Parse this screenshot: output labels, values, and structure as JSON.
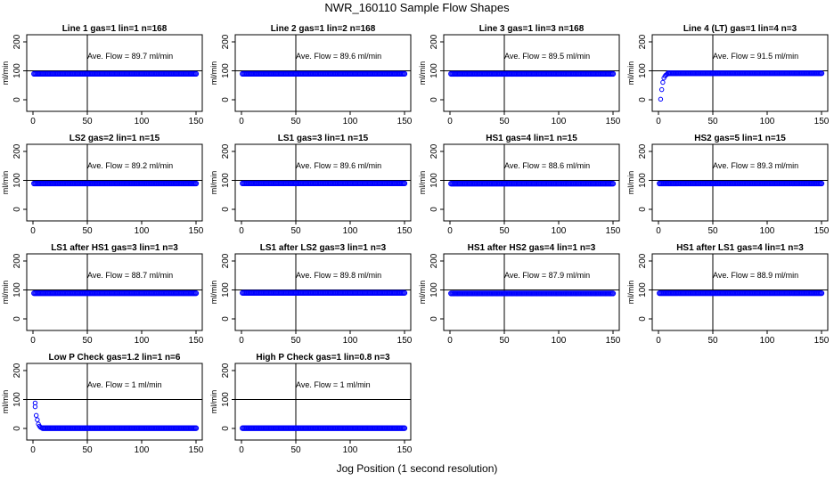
{
  "title": "NWR_160110  Sample Flow Shapes",
  "x_axis_label": "Jog Position (1 second resolution)",
  "colors": {
    "points": "#0000ff",
    "axes": "#000000"
  },
  "chart_data": [
    {
      "type": "scatter",
      "title": "Line 1 gas=1 lin=1 n=168",
      "ylabel": "ml/min",
      "annotation": "Ave. Flow =  89.7  ml/min",
      "xlim": [
        0,
        150
      ],
      "ylim": [
        0,
        200
      ],
      "x_ticks": [
        0,
        50,
        100,
        150
      ],
      "y_ticks": [
        0,
        100,
        200
      ],
      "hlines": [
        100
      ],
      "vlines": [
        50
      ],
      "series": [
        {
          "x_range": [
            1,
            150
          ],
          "y": 89.7
        }
      ]
    },
    {
      "type": "scatter",
      "title": "Line 2 gas=1 lin=2 n=168",
      "ylabel": "ml/min",
      "annotation": "Ave. Flow =  89.6  ml/min",
      "xlim": [
        0,
        150
      ],
      "ylim": [
        0,
        200
      ],
      "x_ticks": [
        0,
        50,
        100,
        150
      ],
      "y_ticks": [
        0,
        100,
        200
      ],
      "hlines": [
        100
      ],
      "vlines": [
        50
      ],
      "series": [
        {
          "x_range": [
            1,
            150
          ],
          "y": 89.6
        }
      ]
    },
    {
      "type": "scatter",
      "title": "Line 3 gas=1 lin=3 n=168",
      "ylabel": "ml/min",
      "annotation": "Ave. Flow =  89.5  ml/min",
      "xlim": [
        0,
        150
      ],
      "ylim": [
        0,
        200
      ],
      "x_ticks": [
        0,
        50,
        100,
        150
      ],
      "y_ticks": [
        0,
        100,
        200
      ],
      "hlines": [
        100
      ],
      "vlines": [
        50
      ],
      "series": [
        {
          "x_range": [
            1,
            150
          ],
          "y": 89.5
        }
      ]
    },
    {
      "type": "scatter",
      "title": "Line 4 (LT) gas=1 lin=4 n=3",
      "ylabel": "ml/min",
      "annotation": "Ave. Flow =  91.5  ml/min",
      "xlim": [
        0,
        150
      ],
      "ylim": [
        0,
        200
      ],
      "x_ticks": [
        0,
        50,
        100,
        150
      ],
      "y_ticks": [
        0,
        100,
        200
      ],
      "hlines": [
        100
      ],
      "vlines": [
        50
      ],
      "series": [
        {
          "points": [
            [
              2,
              2
            ],
            [
              3,
              35
            ],
            [
              4,
              60
            ],
            [
              5,
              75
            ],
            [
              6,
              82
            ],
            [
              7,
              86
            ],
            [
              8,
              88
            ]
          ],
          "x_range": [
            9,
            150
          ],
          "y": 91.5
        }
      ]
    },
    {
      "type": "scatter",
      "title": "LS2 gas=2 lin=1 n=15",
      "ylabel": "ml/min",
      "annotation": "Ave. Flow =  89.2  ml/min",
      "xlim": [
        0,
        150
      ],
      "ylim": [
        0,
        200
      ],
      "x_ticks": [
        0,
        50,
        100,
        150
      ],
      "y_ticks": [
        0,
        100,
        200
      ],
      "hlines": [
        100
      ],
      "vlines": [
        50
      ],
      "series": [
        {
          "x_range": [
            1,
            150
          ],
          "y": 89.2
        }
      ]
    },
    {
      "type": "scatter",
      "title": "LS1 gas=3 lin=1 n=15",
      "ylabel": "ml/min",
      "annotation": "Ave. Flow =  89.6  ml/min",
      "xlim": [
        0,
        150
      ],
      "ylim": [
        0,
        200
      ],
      "x_ticks": [
        0,
        50,
        100,
        150
      ],
      "y_ticks": [
        0,
        100,
        200
      ],
      "hlines": [
        100
      ],
      "vlines": [
        50
      ],
      "series": [
        {
          "x_range": [
            1,
            150
          ],
          "y": 89.6
        }
      ]
    },
    {
      "type": "scatter",
      "title": "HS1 gas=4 lin=1 n=15",
      "ylabel": "ml/min",
      "annotation": "Ave. Flow =  88.6  ml/min",
      "xlim": [
        0,
        150
      ],
      "ylim": [
        0,
        200
      ],
      "x_ticks": [
        0,
        50,
        100,
        150
      ],
      "y_ticks": [
        0,
        100,
        200
      ],
      "hlines": [
        100
      ],
      "vlines": [
        50
      ],
      "series": [
        {
          "x_range": [
            1,
            150
          ],
          "y": 88.6
        }
      ]
    },
    {
      "type": "scatter",
      "title": "HS2 gas=5 lin=1 n=15",
      "ylabel": "ml/min",
      "annotation": "Ave. Flow =  89.3  ml/min",
      "xlim": [
        0,
        150
      ],
      "ylim": [
        0,
        200
      ],
      "x_ticks": [
        0,
        50,
        100,
        150
      ],
      "y_ticks": [
        0,
        100,
        200
      ],
      "hlines": [
        100
      ],
      "vlines": [
        50
      ],
      "series": [
        {
          "x_range": [
            1,
            150
          ],
          "y": 89.3
        }
      ]
    },
    {
      "type": "scatter",
      "title": "LS1 after HS1 gas=3 lin=1 n=3",
      "ylabel": "ml/min",
      "annotation": "Ave. Flow =  88.7  ml/min",
      "xlim": [
        0,
        150
      ],
      "ylim": [
        0,
        200
      ],
      "x_ticks": [
        0,
        50,
        100,
        150
      ],
      "y_ticks": [
        0,
        100,
        200
      ],
      "hlines": [
        100
      ],
      "vlines": [
        50
      ],
      "series": [
        {
          "x_range": [
            1,
            150
          ],
          "y": 88.7
        }
      ]
    },
    {
      "type": "scatter",
      "title": "LS1 after LS2 gas=3 lin=1 n=3",
      "ylabel": "ml/min",
      "annotation": "Ave. Flow =  89.8  ml/min",
      "xlim": [
        0,
        150
      ],
      "ylim": [
        0,
        200
      ],
      "x_ticks": [
        0,
        50,
        100,
        150
      ],
      "y_ticks": [
        0,
        100,
        200
      ],
      "hlines": [
        100
      ],
      "vlines": [
        50
      ],
      "series": [
        {
          "x_range": [
            1,
            150
          ],
          "y": 89.8
        }
      ]
    },
    {
      "type": "scatter",
      "title": "HS1 after HS2 gas=4 lin=1 n=3",
      "ylabel": "ml/min",
      "annotation": "Ave. Flow =  87.9  ml/min",
      "xlim": [
        0,
        150
      ],
      "ylim": [
        0,
        200
      ],
      "x_ticks": [
        0,
        50,
        100,
        150
      ],
      "y_ticks": [
        0,
        100,
        200
      ],
      "hlines": [
        100
      ],
      "vlines": [
        50
      ],
      "series": [
        {
          "x_range": [
            1,
            150
          ],
          "y": 87.9
        }
      ]
    },
    {
      "type": "scatter",
      "title": "HS1 after LS1 gas=4 lin=1 n=3",
      "ylabel": "ml/min",
      "annotation": "Ave. Flow =  88.9  ml/min",
      "xlim": [
        0,
        150
      ],
      "ylim": [
        0,
        200
      ],
      "x_ticks": [
        0,
        50,
        100,
        150
      ],
      "y_ticks": [
        0,
        100,
        200
      ],
      "hlines": [
        100
      ],
      "vlines": [
        50
      ],
      "series": [
        {
          "x_range": [
            1,
            150
          ],
          "y": 88.9
        }
      ]
    },
    {
      "type": "scatter",
      "title": "Low P Check gas=1.2 lin=1 n=6",
      "ylabel": "ml/min",
      "annotation": "Ave. Flow =  1  ml/min",
      "xlim": [
        0,
        150
      ],
      "ylim": [
        0,
        200
      ],
      "x_ticks": [
        0,
        50,
        100,
        150
      ],
      "y_ticks": [
        0,
        100,
        200
      ],
      "hlines": [
        100
      ],
      "vlines": [
        50
      ],
      "series": [
        {
          "points": [
            [
              2,
              88
            ],
            [
              2,
              75
            ],
            [
              3,
              45
            ],
            [
              4,
              30
            ],
            [
              5,
              15
            ],
            [
              6,
              8
            ],
            [
              7,
              4
            ],
            [
              8,
              2
            ]
          ],
          "x_range": [
            9,
            150
          ],
          "y": 1
        }
      ]
    },
    {
      "type": "scatter",
      "title": "High P Check gas=1 lin=0.8 n=3",
      "ylabel": "ml/min",
      "annotation": "Ave. Flow =  1  ml/min",
      "xlim": [
        0,
        150
      ],
      "ylim": [
        0,
        200
      ],
      "x_ticks": [
        0,
        50,
        100,
        150
      ],
      "y_ticks": [
        0,
        100,
        200
      ],
      "hlines": [
        100
      ],
      "vlines": [
        50
      ],
      "series": [
        {
          "x_range": [
            1,
            150
          ],
          "y": 1
        }
      ]
    }
  ]
}
